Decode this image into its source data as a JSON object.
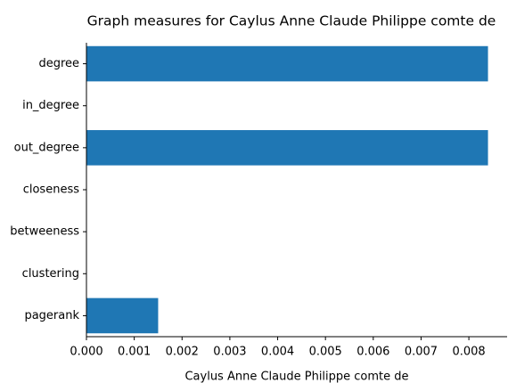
{
  "chart_data": {
    "type": "barh",
    "title": "Graph measures for Caylus Anne Claude Philippe comte de",
    "xlabel": "Caylus Anne Claude Philippe comte de",
    "categories": [
      "degree",
      "in_degree",
      "out_degree",
      "closeness",
      "betweeness",
      "clustering",
      "pagerank"
    ],
    "values": [
      0.0084,
      0,
      0.0084,
      0,
      0,
      0,
      0.0015
    ],
    "color": "#1f77b4",
    "xlim": [
      0,
      0.0088
    ],
    "xticks": [
      {
        "value": 0,
        "label": "0.000"
      },
      {
        "value": 0.001,
        "label": "0.001"
      },
      {
        "value": 0.002,
        "label": "0.002"
      },
      {
        "value": 0.003,
        "label": "0.003"
      },
      {
        "value": 0.004,
        "label": "0.004"
      },
      {
        "value": 0.005,
        "label": "0.005"
      },
      {
        "value": 0.006,
        "label": "0.006"
      },
      {
        "value": 0.007,
        "label": "0.007"
      },
      {
        "value": 0.008,
        "label": "0.008"
      }
    ]
  }
}
